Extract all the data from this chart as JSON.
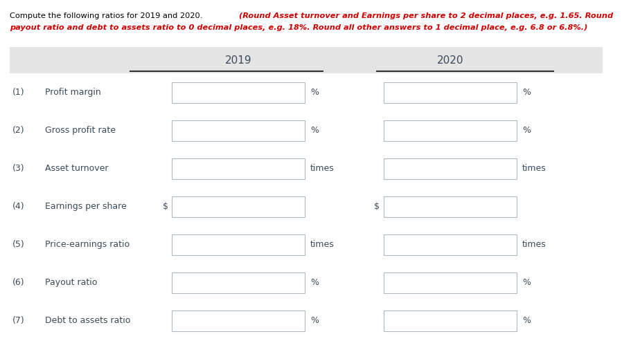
{
  "title_normal": "Compute the following ratios for 2019 and 2020. ",
  "title_bold_italic": "(Round Asset turnover and Earnings per share to 2 decimal places, e.g. 1.65. Round payout ratio and debt to assets ratio to 0 decimal places, e.g. 18%. Round all other answers to 1 decimal place, e.g. 6.8 or 6.8%.)",
  "col_headers": [
    "2019",
    "2020"
  ],
  "rows": [
    {
      "num": "(1)",
      "label": "Profit margin",
      "unit_2019": "%",
      "unit_2020": "%",
      "prefix_2019": "",
      "prefix_2020": ""
    },
    {
      "num": "(2)",
      "label": "Gross profit rate",
      "unit_2019": "%",
      "unit_2020": "%",
      "prefix_2019": "",
      "prefix_2020": ""
    },
    {
      "num": "(3)",
      "label": "Asset turnover",
      "unit_2019": "times",
      "unit_2020": "times",
      "prefix_2019": "",
      "prefix_2020": ""
    },
    {
      "num": "(4)",
      "label": "Earnings per share",
      "unit_2019": "",
      "unit_2020": "",
      "prefix_2019": "$",
      "prefix_2020": "$"
    },
    {
      "num": "(5)",
      "label": "Price-earnings ratio",
      "unit_2019": "times",
      "unit_2020": "times",
      "prefix_2019": "",
      "prefix_2020": ""
    },
    {
      "num": "(6)",
      "label": "Payout ratio",
      "unit_2019": "%",
      "unit_2020": "%",
      "prefix_2019": "",
      "prefix_2020": ""
    },
    {
      "num": "(7)",
      "label": "Debt to assets ratio",
      "unit_2019": "%",
      "unit_2020": "%",
      "prefix_2019": "",
      "prefix_2020": ""
    }
  ],
  "header_bg": "#e5e5e5",
  "row_bg": "#ffffff",
  "box_facecolor": "#ffffff",
  "box_edgecolor": "#b0b8c4",
  "text_color": "#3a4a5a",
  "header_line_color": "#333333",
  "title_black_color": "#000000",
  "title_red_color": "#cc0000",
  "figsize": [
    9.11,
    5.09
  ],
  "dpi": 100
}
